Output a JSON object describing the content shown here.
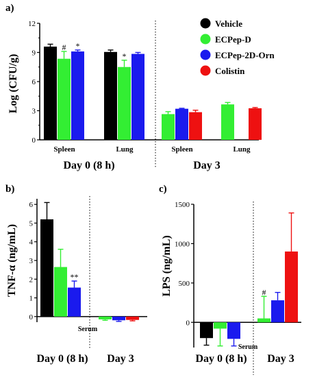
{
  "legend": [
    {
      "name": "Vehicle",
      "color": "#000000"
    },
    {
      "name": "ECPep-D",
      "color": "#33ee33"
    },
    {
      "name": "ECPep-2D-Orn",
      "color": "#1a1aee"
    },
    {
      "name": "Colistin",
      "color": "#ee1111"
    }
  ],
  "chart_data": [
    {
      "type": "bar",
      "panel_label": "a)",
      "ylabel": "Log (CFU/g)",
      "ylim": [
        0,
        12
      ],
      "yticks": [
        "0",
        "3",
        "6",
        "9",
        "12"
      ],
      "groups": [
        {
          "category": "Spleen",
          "period": "Day 0 (8 h)",
          "bars": [
            {
              "series": "Vehicle",
              "value": 9.6,
              "err": 0.25,
              "mark": ""
            },
            {
              "series": "ECPep-D",
              "value": 8.35,
              "err": 0.75,
              "mark": "#"
            },
            {
              "series": "ECPep-2D-Orn",
              "value": 9.1,
              "err": 0.15,
              "mark": "*"
            }
          ]
        },
        {
          "category": "Lung",
          "period": "Day 0 (8 h)",
          "bars": [
            {
              "series": "Vehicle",
              "value": 9.05,
              "err": 0.2,
              "mark": ""
            },
            {
              "series": "ECPep-D",
              "value": 7.5,
              "err": 0.7,
              "mark": "*"
            },
            {
              "series": "ECPep-2D-Orn",
              "value": 8.85,
              "err": 0.15,
              "mark": ""
            }
          ]
        },
        {
          "category": "Spleen",
          "period": "Day 3",
          "bars": [
            {
              "series": "ECPep-D",
              "value": 2.65,
              "err": 0.25,
              "mark": ""
            },
            {
              "series": "ECPep-2D-Orn",
              "value": 3.2,
              "err": 0.05,
              "mark": ""
            },
            {
              "series": "Colistin",
              "value": 2.85,
              "err": 0.2,
              "mark": ""
            }
          ]
        },
        {
          "category": "Lung",
          "period": "Day 3",
          "bars": [
            {
              "series": "ECPep-D",
              "value": 3.65,
              "err": 0.2,
              "mark": ""
            },
            {
              "series": "Colistin",
              "value": 3.25,
              "err": 0.08,
              "mark": ""
            }
          ]
        }
      ],
      "periods": [
        "Day 0 (8 h)",
        "Day 3"
      ]
    },
    {
      "type": "bar",
      "panel_label": "b)",
      "ylabel": "TNF-α (ng/mL)",
      "ylim": [
        -0.3,
        6.3
      ],
      "yticks": [
        "0",
        "1",
        "2",
        "3",
        "4",
        "5",
        "6"
      ],
      "groups": [
        {
          "category": "Serum",
          "period": "Day 0 (8 h)",
          "bars": [
            {
              "series": "Vehicle",
              "value": 5.2,
              "err": 0.9,
              "mark": ""
            },
            {
              "series": "ECPep-D",
              "value": 2.65,
              "err": 0.95,
              "mark": ""
            },
            {
              "series": "ECPep-2D-Orn",
              "value": 1.55,
              "err": 0.35,
              "mark": "**"
            }
          ]
        },
        {
          "category": "Serum",
          "period": "Day 3",
          "bars": [
            {
              "series": "ECPep-D",
              "value": -0.15,
              "err": 0.05,
              "mark": ""
            },
            {
              "series": "ECPep-2D-Orn",
              "value": -0.2,
              "err": 0.06,
              "mark": ""
            },
            {
              "series": "Colistin",
              "value": -0.18,
              "err": 0.05,
              "mark": ""
            }
          ]
        }
      ],
      "category_label": "Serum",
      "periods": [
        "Day 0 (8 h)",
        "Day 3"
      ]
    },
    {
      "type": "bar",
      "panel_label": "c)",
      "ylabel": "LPS (ng/mL)",
      "ylim": [
        -320,
        1500
      ],
      "yticks": [
        "-500",
        "0",
        "500",
        "1000",
        "1500"
      ],
      "groups": [
        {
          "category": "Serum",
          "period": "Day 0 (8 h)",
          "bars": [
            {
              "series": "Vehicle",
              "value": -200,
              "err": 90,
              "mark": ""
            },
            {
              "series": "ECPep-D",
              "value": -80,
              "err": 220,
              "mark": ""
            },
            {
              "series": "ECPep-2D-Orn",
              "value": -210,
              "err": 90,
              "mark": ""
            }
          ]
        },
        {
          "category": "Serum",
          "period": "Day 3",
          "bars": [
            {
              "series": "ECPep-D",
              "value": 50,
              "err": 280,
              "mark": "#"
            },
            {
              "series": "ECPep-2D-Orn",
              "value": 280,
              "err": 100,
              "mark": ""
            },
            {
              "series": "Colistin",
              "value": 900,
              "err": 490,
              "mark": ""
            }
          ]
        }
      ],
      "category_label": "Serum",
      "periods": [
        "Day 0 (8 h)",
        "Day 3"
      ]
    }
  ]
}
